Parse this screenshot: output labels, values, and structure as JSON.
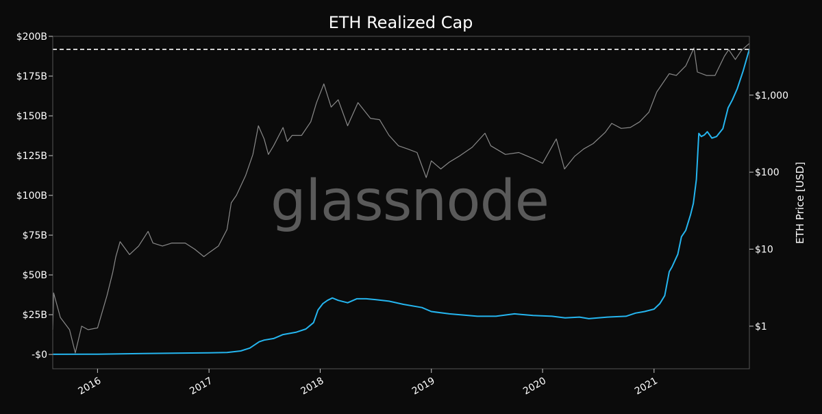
{
  "chart_data": {
    "type": "line",
    "title": "ETH Realized Cap",
    "watermark": "glassnode",
    "x_ticks": [
      "2016",
      "2017",
      "2018",
      "2019",
      "2020",
      "2021"
    ],
    "x_range": [
      "2015-08-07",
      "2021-11-10"
    ],
    "y_left": {
      "ticks": [
        "-$0",
        "$25B",
        "$50B",
        "$75B",
        "$100B",
        "$125B",
        "$150B",
        "$175B",
        "$200B"
      ],
      "ylim": [
        -9,
        200
      ]
    },
    "y_right": {
      "label": "ETH Price [USD]",
      "scale": "log",
      "ticks": [
        "$1",
        "$10",
        "$100",
        "$1,000"
      ],
      "ylim": [
        0.28,
        5800
      ]
    },
    "reference_line": {
      "value_billion": 191.8,
      "style": "dashed",
      "color": "#ffffff"
    },
    "colors": {
      "background": "#0b0b0b",
      "realized_cap": "#25b6f0",
      "price": "#8a8a8a",
      "text": "#ffffff",
      "watermark": "#5a5a5a"
    },
    "series": [
      {
        "key": "realized_cap",
        "axis": "left",
        "unit": "USD billions",
        "points": [
          [
            "2015-08-07",
            0.1
          ],
          [
            "2016-01-01",
            0.2
          ],
          [
            "2016-06-01",
            0.6
          ],
          [
            "2017-01-01",
            1.0
          ],
          [
            "2017-03-01",
            1.2
          ],
          [
            "2017-04-15",
            2.2
          ],
          [
            "2017-05-15",
            4.0
          ],
          [
            "2017-06-15",
            8.0
          ],
          [
            "2017-07-01",
            9.0
          ],
          [
            "2017-08-01",
            10.0
          ],
          [
            "2017-09-01",
            12.5
          ],
          [
            "2017-10-15",
            14.0
          ],
          [
            "2017-11-15",
            16.0
          ],
          [
            "2017-12-10",
            20.0
          ],
          [
            "2017-12-25",
            28.0
          ],
          [
            "2018-01-10",
            32.0
          ],
          [
            "2018-01-25",
            34.0
          ],
          [
            "2018-02-10",
            35.5
          ],
          [
            "2018-03-01",
            34.0
          ],
          [
            "2018-04-01",
            32.5
          ],
          [
            "2018-05-01",
            35.0
          ],
          [
            "2018-06-01",
            35.0
          ],
          [
            "2018-07-01",
            34.5
          ],
          [
            "2018-08-15",
            33.5
          ],
          [
            "2018-10-01",
            31.5
          ],
          [
            "2018-12-01",
            29.5
          ],
          [
            "2019-01-01",
            27.0
          ],
          [
            "2019-03-01",
            25.5
          ],
          [
            "2019-06-01",
            24.0
          ],
          [
            "2019-08-01",
            24.0
          ],
          [
            "2019-10-01",
            25.5
          ],
          [
            "2019-12-01",
            24.5
          ],
          [
            "2020-02-01",
            24.0
          ],
          [
            "2020-03-15",
            23.0
          ],
          [
            "2020-05-01",
            23.5
          ],
          [
            "2020-06-01",
            22.5
          ],
          [
            "2020-08-01",
            23.5
          ],
          [
            "2020-10-01",
            24.0
          ],
          [
            "2020-11-01",
            26.0
          ],
          [
            "2020-12-01",
            27.0
          ],
          [
            "2021-01-01",
            28.5
          ],
          [
            "2021-01-20",
            32.0
          ],
          [
            "2021-02-05",
            37.0
          ],
          [
            "2021-02-20",
            52.0
          ],
          [
            "2021-03-01",
            55.0
          ],
          [
            "2021-03-20",
            63.0
          ],
          [
            "2021-04-01",
            74.0
          ],
          [
            "2021-04-15",
            78.0
          ],
          [
            "2021-05-01",
            88.0
          ],
          [
            "2021-05-10",
            95.0
          ],
          [
            "2021-05-20",
            110.0
          ],
          [
            "2021-05-28",
            139.0
          ],
          [
            "2021-06-05",
            137.0
          ],
          [
            "2021-06-15",
            138.0
          ],
          [
            "2021-06-25",
            140.0
          ],
          [
            "2021-07-10",
            136.0
          ],
          [
            "2021-07-25",
            137.0
          ],
          [
            "2021-08-15",
            142.0
          ],
          [
            "2021-09-01",
            155.0
          ],
          [
            "2021-09-15",
            160.0
          ],
          [
            "2021-10-01",
            167.0
          ],
          [
            "2021-10-20",
            178.0
          ],
          [
            "2021-11-10",
            192.0
          ]
        ]
      },
      {
        "key": "eth_price",
        "axis": "right",
        "unit": "USD",
        "points": [
          [
            "2015-08-07",
            0.9
          ],
          [
            "2015-08-10",
            2.7
          ],
          [
            "2015-09-01",
            1.3
          ],
          [
            "2015-10-01",
            0.9
          ],
          [
            "2015-10-20",
            0.45
          ],
          [
            "2015-11-10",
            1.0
          ],
          [
            "2015-12-01",
            0.9
          ],
          [
            "2016-01-01",
            0.95
          ],
          [
            "2016-02-01",
            2.5
          ],
          [
            "2016-02-20",
            5.0
          ],
          [
            "2016-03-01",
            8.0
          ],
          [
            "2016-03-15",
            12.5
          ],
          [
            "2016-04-15",
            8.5
          ],
          [
            "2016-05-15",
            11.0
          ],
          [
            "2016-06-15",
            17.0
          ],
          [
            "2016-07-01",
            12.0
          ],
          [
            "2016-08-01",
            11.0
          ],
          [
            "2016-09-01",
            12.0
          ],
          [
            "2016-10-15",
            12.0
          ],
          [
            "2016-11-15",
            10.0
          ],
          [
            "2016-12-15",
            8.0
          ],
          [
            "2017-01-01",
            9.0
          ],
          [
            "2017-02-01",
            11.0
          ],
          [
            "2017-03-01",
            18.0
          ],
          [
            "2017-03-15",
            40.0
          ],
          [
            "2017-04-01",
            50.0
          ],
          [
            "2017-05-01",
            90.0
          ],
          [
            "2017-05-25",
            170.0
          ],
          [
            "2017-06-12",
            400.0
          ],
          [
            "2017-07-01",
            270.0
          ],
          [
            "2017-07-15",
            170.0
          ],
          [
            "2017-08-01",
            220.0
          ],
          [
            "2017-09-01",
            380.0
          ],
          [
            "2017-09-15",
            250.0
          ],
          [
            "2017-10-01",
            300.0
          ],
          [
            "2017-11-01",
            300.0
          ],
          [
            "2017-12-01",
            450.0
          ],
          [
            "2017-12-20",
            800.0
          ],
          [
            "2018-01-13",
            1400.0
          ],
          [
            "2018-02-06",
            700.0
          ],
          [
            "2018-03-01",
            870.0
          ],
          [
            "2018-04-01",
            400.0
          ],
          [
            "2018-05-05",
            800.0
          ],
          [
            "2018-06-15",
            500.0
          ],
          [
            "2018-07-15",
            480.0
          ],
          [
            "2018-08-15",
            300.0
          ],
          [
            "2018-09-15",
            220.0
          ],
          [
            "2018-10-15",
            200.0
          ],
          [
            "2018-11-15",
            180.0
          ],
          [
            "2018-12-15",
            85.0
          ],
          [
            "2019-01-01",
            140.0
          ],
          [
            "2019-02-01",
            110.0
          ],
          [
            "2019-03-01",
            135.0
          ],
          [
            "2019-04-01",
            160.0
          ],
          [
            "2019-05-15",
            210.0
          ],
          [
            "2019-06-26",
            320.0
          ],
          [
            "2019-07-15",
            220.0
          ],
          [
            "2019-09-01",
            170.0
          ],
          [
            "2019-10-15",
            180.0
          ],
          [
            "2019-12-01",
            150.0
          ],
          [
            "2020-01-01",
            130.0
          ],
          [
            "2020-02-15",
            270.0
          ],
          [
            "2020-03-13",
            110.0
          ],
          [
            "2020-04-15",
            160.0
          ],
          [
            "2020-05-15",
            200.0
          ],
          [
            "2020-06-15",
            235.0
          ],
          [
            "2020-07-25",
            330.0
          ],
          [
            "2020-08-15",
            430.0
          ],
          [
            "2020-09-15",
            370.0
          ],
          [
            "2020-10-15",
            380.0
          ],
          [
            "2020-11-15",
            450.0
          ],
          [
            "2020-12-15",
            600.0
          ],
          [
            "2021-01-10",
            1100.0
          ],
          [
            "2021-02-20",
            1900.0
          ],
          [
            "2021-03-15",
            1800.0
          ],
          [
            "2021-04-15",
            2400.0
          ],
          [
            "2021-05-12",
            4100.0
          ],
          [
            "2021-05-23",
            2000.0
          ],
          [
            "2021-06-22",
            1800.0
          ],
          [
            "2021-07-20",
            1800.0
          ],
          [
            "2021-08-20",
            3200.0
          ],
          [
            "2021-09-03",
            3900.0
          ],
          [
            "2021-09-25",
            2900.0
          ],
          [
            "2021-10-15",
            3800.0
          ],
          [
            "2021-11-10",
            4700.0
          ]
        ]
      }
    ]
  }
}
